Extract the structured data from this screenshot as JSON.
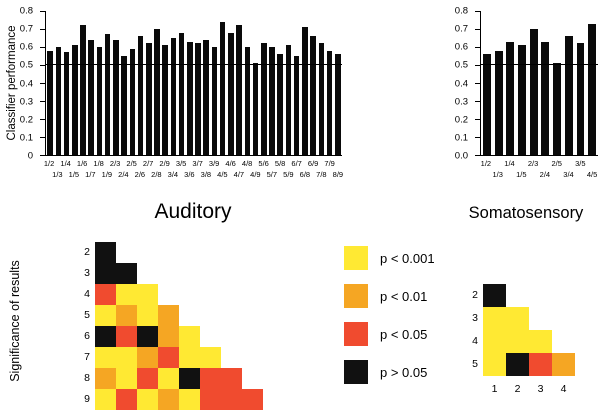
{
  "section_label": "Significance of results",
  "legend": [
    {
      "key": "y",
      "label": "p < 0.001",
      "color": "#FFE933"
    },
    {
      "key": "o",
      "label": "p < 0.01",
      "color": "#F5A623"
    },
    {
      "key": "r",
      "label": "p < 0.05",
      "color": "#F04B2F"
    },
    {
      "key": "k",
      "label": "p > 0.05",
      "color": "#111111"
    }
  ],
  "chart_data": [
    {
      "type": "bar",
      "id": "auditory",
      "title": "Auditory",
      "ylabel": "Classifier performance",
      "ylim": [
        0,
        0.8
      ],
      "yticks": [
        "0.8",
        "0.7",
        "0.6",
        "0.5",
        "0.4",
        "0.3",
        "0.2",
        "0.1",
        "0"
      ],
      "chance_line": 0.5,
      "bar_color": "#0a0a0a",
      "categories": [
        "1/2",
        "1/3",
        "1/4",
        "1/5",
        "1/6",
        "1/7",
        "1/8",
        "1/9",
        "2/3",
        "2/4",
        "2/5",
        "2/6",
        "2/7",
        "2/8",
        "2/9",
        "3/4",
        "3/5",
        "3/6",
        "3/7",
        "3/8",
        "3/9",
        "4/5",
        "4/6",
        "4/7",
        "4/8",
        "4/9",
        "5/6",
        "5/7",
        "5/8",
        "5/9",
        "6/7",
        "6/8",
        "6/9",
        "7/8",
        "7/9",
        "8/9"
      ],
      "values": [
        0.58,
        0.6,
        0.57,
        0.61,
        0.72,
        0.64,
        0.6,
        0.67,
        0.64,
        0.55,
        0.59,
        0.66,
        0.62,
        0.7,
        0.61,
        0.65,
        0.68,
        0.63,
        0.62,
        0.64,
        0.6,
        0.74,
        0.68,
        0.72,
        0.6,
        0.51,
        0.62,
        0.6,
        0.56,
        0.61,
        0.55,
        0.71,
        0.66,
        0.62,
        0.58,
        0.56
      ]
    },
    {
      "type": "bar",
      "id": "somatosensory",
      "title": "Somatosensory",
      "ylim": [
        0,
        0.8
      ],
      "yticks": [
        "0.8",
        "0.7",
        "0.6",
        "0.5",
        "0.4",
        "0.3",
        "0.2",
        "0.1",
        "0.0"
      ],
      "chance_line": 0.5,
      "bar_color": "#0a0a0a",
      "categories": [
        "1/2",
        "1/3",
        "1/4",
        "1/5",
        "2/3",
        "2/4",
        "2/5",
        "3/4",
        "3/5",
        "4/5"
      ],
      "values": [
        0.56,
        0.58,
        0.63,
        0.61,
        0.7,
        0.63,
        0.51,
        0.66,
        0.62,
        0.73
      ]
    },
    {
      "type": "heatmap",
      "id": "auditory-significance",
      "row_labels": [
        "2",
        "3",
        "4",
        "5",
        "6",
        "7",
        "8",
        "9"
      ],
      "rows": [
        [
          "k"
        ],
        [
          "k",
          "k"
        ],
        [
          "r",
          "y",
          "y"
        ],
        [
          "y",
          "o",
          "y",
          "o"
        ],
        [
          "k",
          "r",
          "k",
          "o",
          "y"
        ],
        [
          "y",
          "y",
          "o",
          "r",
          "y",
          "y"
        ],
        [
          "o",
          "y",
          "r",
          "y",
          "k",
          "r",
          "r"
        ],
        [
          "y",
          "r",
          "y",
          "o",
          "y",
          "r",
          "r",
          "r"
        ]
      ]
    },
    {
      "type": "heatmap",
      "id": "somatosensory-significance",
      "row_labels": [
        "2",
        "3",
        "4",
        "5"
      ],
      "col_labels": [
        "1",
        "2",
        "3",
        "4"
      ],
      "rows": [
        [
          "k"
        ],
        [
          "y",
          "y"
        ],
        [
          "y",
          "y",
          "y"
        ],
        [
          "y",
          "k",
          "r",
          "o"
        ]
      ]
    }
  ]
}
